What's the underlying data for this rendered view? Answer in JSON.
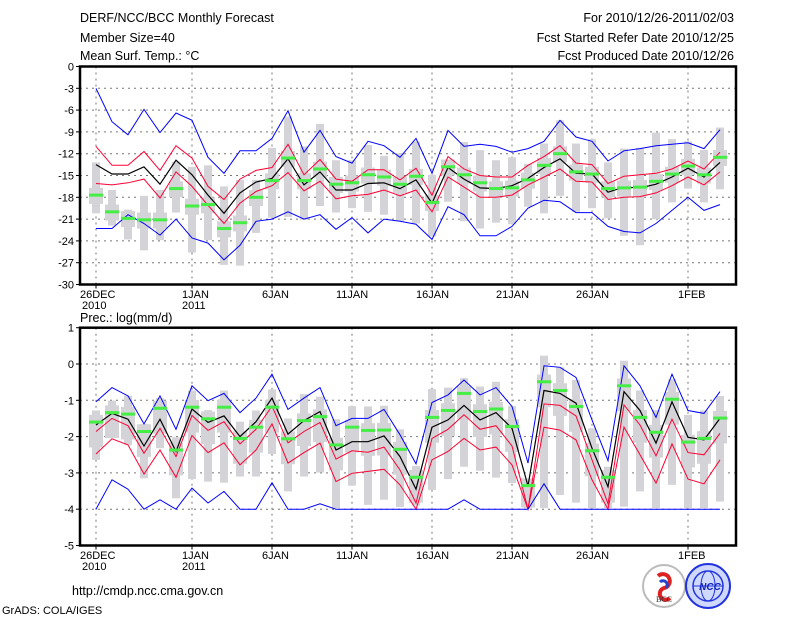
{
  "header": {
    "title": "DERF/NCC/BCC Monthly Forecast",
    "member_size": "Member Size=40",
    "variable_top": "Mean Surf. Temp.: °C",
    "period": "For 2010/12/26-2011/02/03",
    "start_date": "Fcst Started Refer Date 2010/12/25",
    "produced_date": "Fcst Produced Date 2010/12/26"
  },
  "footer": {
    "url": "http://cmdp.ncc.cma.gov.cn",
    "credit": "GrADS: COLA/IGES",
    "logo_bcc": "BCC",
    "logo_ncc": "NCC"
  },
  "colors": {
    "max_min": "#0000ff",
    "spread": "#ff0033",
    "mean": "#000000",
    "member_median": "#44ee44",
    "box": "#d4d4d8",
    "grid": "#777777"
  },
  "chart_data": [
    {
      "type": "line",
      "title": "Mean Surf. Temp.: °C",
      "ylabel": "Mean Surf. Temp.: °C",
      "ylim": [
        -30,
        0
      ],
      "yticks": [
        "0",
        "-3",
        "-6",
        "-9",
        "-12",
        "-15",
        "-18",
        "-21",
        "-24",
        "-27",
        "-30"
      ],
      "xticks": [
        {
          "day": 0,
          "label": "26DEC",
          "sub": "2010"
        },
        {
          "day": 6,
          "label": "1JAN",
          "sub": "2011"
        },
        {
          "day": 11,
          "label": "6JAN",
          "sub": ""
        },
        {
          "day": 16,
          "label": "11JAN",
          "sub": ""
        },
        {
          "day": 21,
          "label": "16JAN",
          "sub": ""
        },
        {
          "day": 26,
          "label": "21JAN",
          "sub": ""
        },
        {
          "day": 31,
          "label": "26JAN",
          "sub": ""
        },
        {
          "day": 37,
          "label": "1FEB",
          "sub": ""
        }
      ],
      "grid": true,
      "series": [
        {
          "name": "max",
          "color": "#0000ff",
          "values": [
            -3,
            -7.6,
            -9.4,
            -5.9,
            -9.1,
            -6.4,
            -7.4,
            -12.5,
            -14.7,
            -11.6,
            -11.6,
            -9.9,
            -6.1,
            -11.8,
            -8.8,
            -12.4,
            -13.3,
            -10.3,
            -10.9,
            -12.5,
            -9.9,
            -14.7,
            -8.8,
            -11,
            -10.7,
            -11,
            -11.8,
            -11.3,
            -10.3,
            -7.4,
            -9.7,
            -10.3,
            -13,
            -11.6,
            -11.3,
            -10.9,
            -10.7,
            -10.5,
            -11.3,
            -8.7
          ]
        },
        {
          "name": "upper",
          "color": "#ff0033",
          "values": [
            -11,
            -13.6,
            -13.6,
            -11.7,
            -14.3,
            -10.9,
            -12.6,
            -16.5,
            -18.3,
            -15.5,
            -14.3,
            -13.9,
            -10.7,
            -14.9,
            -12.8,
            -15.5,
            -15.8,
            -14.2,
            -14.2,
            -15.6,
            -14,
            -17.7,
            -12.4,
            -14.1,
            -15,
            -15.2,
            -15.2,
            -13.6,
            -12.4,
            -10.9,
            -13.3,
            -13.5,
            -16.1,
            -15.1,
            -14.9,
            -14.7,
            -14.1,
            -13,
            -14.1,
            -11.8
          ]
        },
        {
          "name": "mean",
          "color": "#000000",
          "values": [
            -13.5,
            -14.8,
            -14.8,
            -13.8,
            -16.2,
            -12.9,
            -14.9,
            -17.7,
            -20.2,
            -17.4,
            -15.9,
            -15.4,
            -12.7,
            -16.3,
            -14.5,
            -17,
            -17,
            -16.1,
            -16,
            -16.8,
            -15.6,
            -18.8,
            -13.9,
            -15.5,
            -16.7,
            -16.8,
            -16.4,
            -15.4,
            -13.9,
            -12.7,
            -14.7,
            -14.8,
            -17.3,
            -16.6,
            -16.7,
            -16.2,
            -15.2,
            -14,
            -15.2,
            -13.2
          ]
        },
        {
          "name": "lower",
          "color": "#ff0033",
          "values": [
            -16.1,
            -16.3,
            -16,
            -15.5,
            -18.1,
            -14.5,
            -16.5,
            -19.1,
            -21.6,
            -18.8,
            -17.2,
            -16.4,
            -14.6,
            -17.1,
            -15.8,
            -18.2,
            -17.8,
            -17.6,
            -17,
            -17.8,
            -17,
            -20,
            -15.2,
            -16.6,
            -18,
            -18,
            -17.7,
            -16.3,
            -15.2,
            -14.1,
            -15.8,
            -15.9,
            -18.3,
            -18,
            -17.9,
            -17.4,
            -16.4,
            -15.2,
            -16.3,
            -14.5
          ]
        },
        {
          "name": "min",
          "color": "#0000ff",
          "values": [
            -22.3,
            -22.3,
            -20.4,
            -21.6,
            -23.2,
            -21,
            -23.6,
            -24.3,
            -26.6,
            -24.6,
            -21.3,
            -21,
            -20,
            -21,
            -20.4,
            -22.4,
            -20.8,
            -22.9,
            -21,
            -21.3,
            -21.7,
            -23.8,
            -19.3,
            -20.4,
            -23.3,
            -23.3,
            -22,
            -19.5,
            -18.4,
            -18.6,
            -20.1,
            -20.1,
            -22,
            -22.7,
            -22.9,
            -21.6,
            -19.8,
            -18,
            -19.8,
            -19
          ]
        }
      ],
      "median": [
        -17.7,
        -20,
        -20.9,
        -21.1,
        -21.1,
        -16.8,
        -19.2,
        -19,
        -22.3,
        -21.5,
        -18,
        -15.7,
        -12.6,
        -15.7,
        -14.1,
        -16.2,
        -16,
        -14.9,
        -15.2,
        -16.2,
        -15.1,
        -18.7,
        -13.8,
        -14.9,
        -16,
        -16.8,
        -16.7,
        -15.6,
        -13.6,
        -12,
        -14.5,
        -14.8,
        -16.8,
        -16.7,
        -16.6,
        -15.8,
        -14.8,
        -13.7,
        -14.9,
        -12.5
      ],
      "whisker_high": [
        -13.2,
        -17,
        -19.7,
        -17.8,
        -17,
        -13.1,
        -13.8,
        -13.6,
        -16.5,
        -15.6,
        -15.6,
        -11.2,
        -6.9,
        -11,
        -7.9,
        -12.9,
        -12.9,
        -10.8,
        -12.3,
        -11.9,
        -10.3,
        -14.9,
        -13.1,
        -10.4,
        -11.5,
        -12.9,
        -12.5,
        -13.4,
        -10.6,
        -7.4,
        -10.6,
        -10,
        -13.2,
        -11.3,
        -11.2,
        -9.1,
        -10,
        -10.3,
        -11.5,
        -8.4
      ],
      "whisker_low": [
        -20.2,
        -21.9,
        -23.8,
        -25.3,
        -23.9,
        -20.1,
        -25.6,
        -23.9,
        -27.3,
        -27.4,
        -22.9,
        -20.8,
        -20.7,
        -21.1,
        -19.2,
        -20.1,
        -19.5,
        -20,
        -20.4,
        -21.3,
        -21.6,
        -23.4,
        -18.6,
        -21.3,
        -22.3,
        -21.5,
        -21.7,
        -19.3,
        -20.2,
        -17.8,
        -20,
        -19.5,
        -20.9,
        -23.3,
        -24.6,
        -21,
        -18.7,
        -16.8,
        -18.7,
        -16.9
      ],
      "box_high": [
        -16.7,
        -19,
        -19.9,
        -20.1,
        -20.1,
        -15.8,
        -18.2,
        -18,
        -21.3,
        -20.5,
        -17,
        -14.7,
        -11.6,
        -14.7,
        -13.1,
        -15.2,
        -15,
        -13.9,
        -14.2,
        -15.2,
        -14.1,
        -17.7,
        -12.8,
        -13.9,
        -15,
        -15.8,
        -15.7,
        -14.6,
        -12.6,
        -11,
        -13.5,
        -13.8,
        -15.8,
        -15.7,
        -15.6,
        -14.8,
        -13.8,
        -12.7,
        -13.9,
        -11.5
      ],
      "box_low": [
        -18.9,
        -21.2,
        -22.1,
        -22.3,
        -22.3,
        -18,
        -20.4,
        -20.2,
        -23.5,
        -22.7,
        -19.2,
        -16.9,
        -13.8,
        -16.9,
        -15.3,
        -17.4,
        -17.2,
        -16.1,
        -16.4,
        -17.4,
        -16.3,
        -19.9,
        -15,
        -16.1,
        -17.2,
        -18,
        -17.9,
        -16.8,
        -14.8,
        -13.2,
        -15.7,
        -16,
        -18,
        -17.9,
        -17.8,
        -17,
        -16,
        -14.9,
        -16.1,
        -13.7
      ]
    },
    {
      "type": "line",
      "title": "Prec.: log(mm/d)",
      "ylabel": "Prec.: log(mm/d)",
      "ylim": [
        -5,
        1
      ],
      "yticks": [
        "1",
        "0",
        "-1",
        "-2",
        "-3",
        "-4",
        "-5"
      ],
      "xticks": [
        {
          "day": 0,
          "label": "26DEC",
          "sub": "2010"
        },
        {
          "day": 6,
          "label": "1JAN",
          "sub": "2011"
        },
        {
          "day": 11,
          "label": "6JAN",
          "sub": ""
        },
        {
          "day": 16,
          "label": "11JAN",
          "sub": ""
        },
        {
          "day": 21,
          "label": "16JAN",
          "sub": ""
        },
        {
          "day": 26,
          "label": "21JAN",
          "sub": ""
        },
        {
          "day": 31,
          "label": "26JAN",
          "sub": ""
        },
        {
          "day": 37,
          "label": "1FEB",
          "sub": ""
        }
      ],
      "grid": true,
      "series": [
        {
          "name": "max",
          "color": "#0000ff",
          "values": [
            -1.04,
            -0.65,
            -0.88,
            -1.65,
            -0.88,
            -1.8,
            -0.6,
            -1.01,
            -0.81,
            -1.34,
            -0.94,
            -0.28,
            -1.25,
            -0.94,
            -0.65,
            -1.7,
            -1.5,
            -1.5,
            -1.25,
            -1.95,
            -2.75,
            -1.06,
            -0.85,
            -0.44,
            -0.85,
            -0.65,
            -1.17,
            -2.73,
            -0.05,
            -0.09,
            -0.37,
            -1.54,
            -2.66,
            -0.05,
            -0.6,
            -1.47,
            -0.28,
            -1.28,
            -1.36,
            -0.76
          ]
        },
        {
          "name": "upper",
          "color": "#ff0033",
          "values": [
            -1.86,
            -1.5,
            -1.7,
            -2.46,
            -1.77,
            -2.55,
            -1.42,
            -1.83,
            -1.59,
            -2.2,
            -1.8,
            -1.16,
            -2.17,
            -1.86,
            -1.61,
            -2.62,
            -2.39,
            -2.43,
            -2.29,
            -2.92,
            -3.83,
            -2.05,
            -1.8,
            -1.4,
            -1.8,
            -1.7,
            -2.26,
            -4,
            -1.1,
            -1.14,
            -1.43,
            -2.64,
            -3.85,
            -1.13,
            -1.68,
            -2.53,
            -1.52,
            -2.44,
            -2.5,
            -1.91
          ]
        },
        {
          "name": "mean",
          "color": "#000000",
          "values": [
            -1.68,
            -1.36,
            -1.52,
            -2.26,
            -1.52,
            -2.41,
            -1.24,
            -1.61,
            -1.43,
            -2,
            -1.59,
            -0.94,
            -1.93,
            -1.56,
            -1.31,
            -2.37,
            -2.14,
            -2.14,
            -1.98,
            -2.55,
            -3.45,
            -1.74,
            -1.54,
            -1.14,
            -1.54,
            -1.34,
            -1.77,
            -3.36,
            -0.73,
            -0.81,
            -1.08,
            -2.32,
            -3.38,
            -0.76,
            -1.28,
            -2.18,
            -1.04,
            -2.02,
            -2.09,
            -1.5
          ]
        },
        {
          "name": "lower",
          "color": "#ff0033",
          "values": [
            -2.48,
            -2.06,
            -2.23,
            -3.03,
            -2.37,
            -3.12,
            -1.97,
            -2.44,
            -2.17,
            -2.78,
            -2.37,
            -1.65,
            -2.73,
            -2.44,
            -2.18,
            -3.24,
            -3.01,
            -2.96,
            -2.9,
            -3.33,
            -4,
            -2.64,
            -2.41,
            -2.05,
            -2.37,
            -2.29,
            -2.78,
            -4,
            -1.74,
            -1.82,
            -2.09,
            -3.19,
            -4,
            -1.74,
            -2.5,
            -3.28,
            -2.2,
            -3.17,
            -3.3,
            -2.64
          ]
        },
        {
          "name": "min",
          "color": "#0000ff",
          "values": [
            -4,
            -3.19,
            -3.45,
            -4,
            -3.74,
            -4,
            -3.42,
            -3.83,
            -3.51,
            -4,
            -4,
            -3.27,
            -4,
            -4,
            -3.85,
            -4,
            -4,
            -4,
            -4,
            -4,
            -4,
            -4,
            -4,
            -3.74,
            -4,
            -4,
            -4,
            -4,
            -3.3,
            -4,
            -4,
            -4,
            -4,
            -4,
            -4,
            -4,
            -4,
            -4,
            -4,
            -4
          ]
        }
      ],
      "median": [
        -1.6,
        -1.34,
        -1.38,
        -1.86,
        -1.22,
        -2.37,
        -1.19,
        -1.51,
        -1.19,
        -2.05,
        -1.74,
        -1.19,
        -2.06,
        -1.56,
        -1.45,
        -2.23,
        -1.74,
        -1.83,
        -1.82,
        -2.35,
        -3.12,
        -1.47,
        -1.28,
        -0.81,
        -1.31,
        -1.24,
        -1.72,
        -3.35,
        -0.49,
        -0.73,
        -1.17,
        -2.39,
        -3.12,
        -0.6,
        -1.47,
        -1.88,
        -0.97,
        -2.15,
        -2.05,
        -1.49
      ],
      "whisker_high": [
        -1.28,
        -1.01,
        -0.88,
        -1.65,
        -0.94,
        -2.02,
        -0.73,
        -1.27,
        -0.73,
        -1.59,
        -1.28,
        -0.7,
        -1.5,
        -0.83,
        -0.9,
        -1.52,
        -1.16,
        -1.17,
        -1.15,
        -1.8,
        -2.81,
        -0.69,
        -0.65,
        -0.39,
        -0.62,
        -0.49,
        -1.16,
        -3.28,
        0.23,
        -0.09,
        -0.44,
        -1.77,
        -2.83,
        0.09,
        -0.73,
        -1.27,
        -0.42,
        -1.4,
        -1.28,
        -0.88
      ],
      "whisker_low": [
        -2.64,
        -2.02,
        -2.23,
        -3.15,
        -2.32,
        -3.7,
        -3.17,
        -3.24,
        -3.27,
        -3.1,
        -3.1,
        -2.48,
        -3.51,
        -3.1,
        -2.99,
        -3.97,
        -3.35,
        -3.88,
        -3.74,
        -3.94,
        -3.9,
        -3.47,
        -3.17,
        -2.83,
        -2.94,
        -3.13,
        -3.28,
        -3.97,
        -3.97,
        -3.61,
        -3.82,
        -3.97,
        -3.97,
        -3.93,
        -3.51,
        -3.97,
        -3.33,
        -3.97,
        -3.97,
        -3.79
      ],
      "box_high": [
        -1.4,
        -1.14,
        -1.18,
        -1.66,
        -1.02,
        -2.17,
        -0.99,
        -1.31,
        -0.99,
        -1.85,
        -1.54,
        -0.99,
        -1.86,
        -1.36,
        -1.25,
        -2.03,
        -1.54,
        -1.63,
        -1.62,
        -2.15,
        -2.92,
        -1.27,
        -1.08,
        -0.61,
        -1.11,
        -1.04,
        -1.52,
        -3.15,
        -0.29,
        -0.53,
        -0.97,
        -2.19,
        -2.92,
        -0.4,
        -1.27,
        -1.68,
        -0.77,
        -1.95,
        -1.85,
        -1.29
      ],
      "box_low": [
        -2.3,
        -2.04,
        -2.08,
        -2.56,
        -1.92,
        -3.07,
        -1.89,
        -2.21,
        -1.89,
        -2.75,
        -2.44,
        -1.89,
        -2.76,
        -2.26,
        -2.15,
        -2.93,
        -2.44,
        -2.53,
        -2.52,
        -3.05,
        -3.82,
        -2.17,
        -1.98,
        -1.51,
        -2.01,
        -1.94,
        -2.42,
        -3.95,
        -1.19,
        -1.43,
        -1.87,
        -3.09,
        -3.82,
        -1.3,
        -2.17,
        -2.58,
        -1.67,
        -2.85,
        -2.75,
        -2.19
      ]
    }
  ]
}
